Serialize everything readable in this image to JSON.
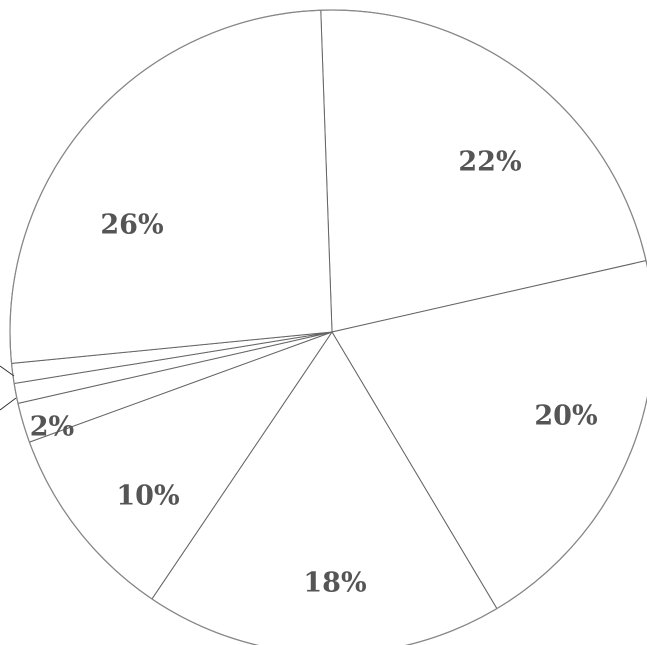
{
  "chart_data": {
    "type": "pie",
    "start_angle_deg": -92,
    "direction": "clockwise",
    "slices": [
      {
        "value": 22,
        "label": "22%"
      },
      {
        "value": 20,
        "label": "20%"
      },
      {
        "value": 18,
        "label": "18%"
      },
      {
        "value": 10,
        "label": "10%"
      },
      {
        "value": 2,
        "label": "2%"
      },
      {
        "value": 1,
        "label": ""
      },
      {
        "value": 1,
        "label": ""
      },
      {
        "value": 26,
        "label": "26%"
      }
    ],
    "colors": {
      "fill": "#ffffff",
      "stroke": "#666666",
      "text": "#555555"
    }
  }
}
